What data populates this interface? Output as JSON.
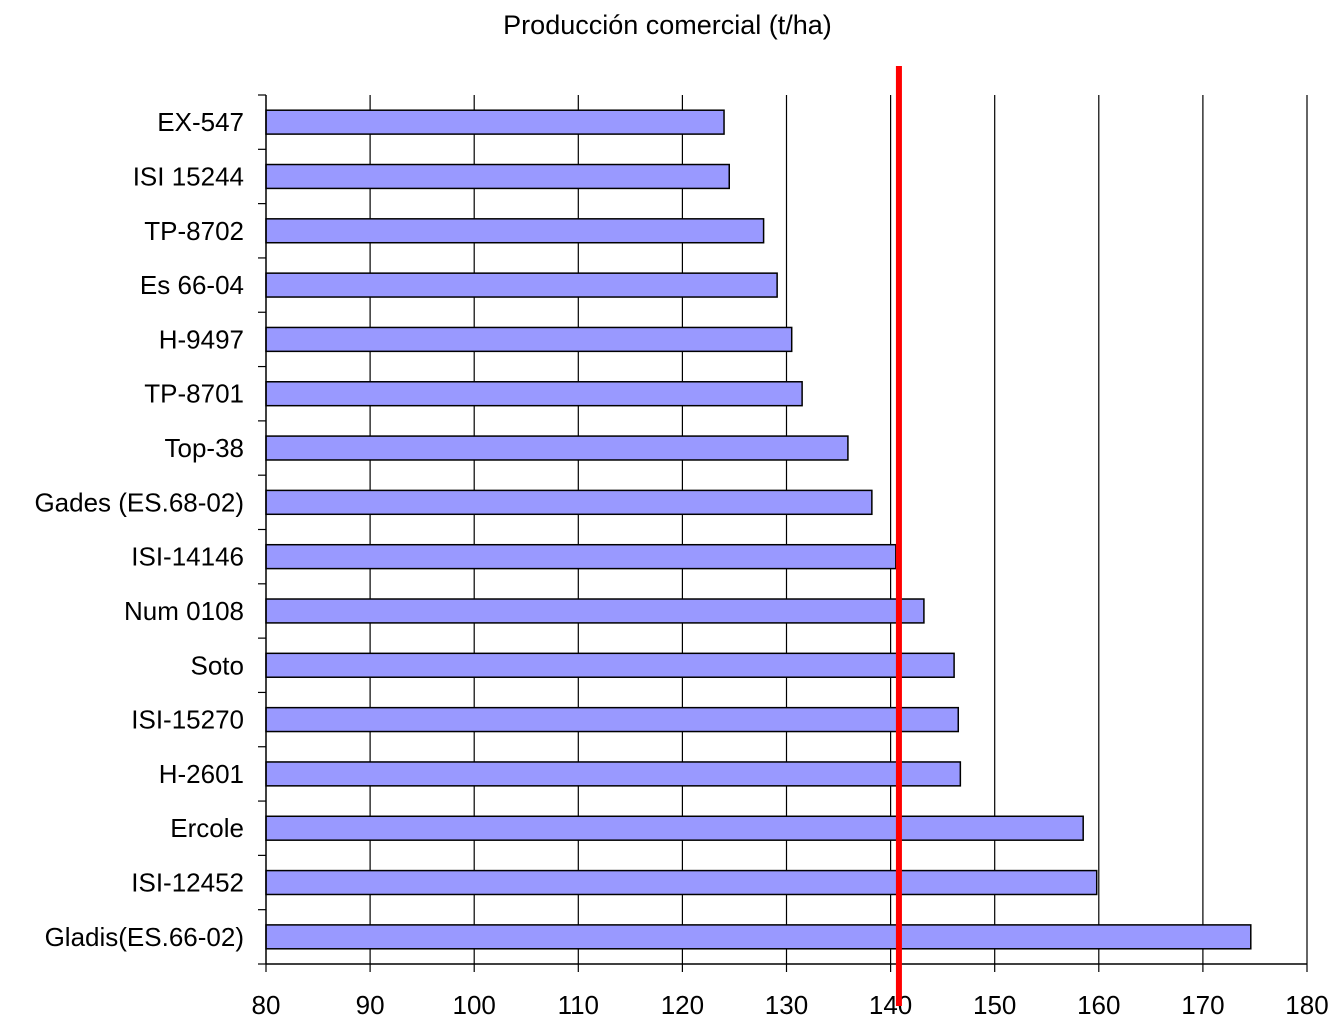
{
  "chart_data": {
    "type": "bar",
    "orientation": "horizontal",
    "title": "Producción comercial (t/ha)",
    "xlabel": "",
    "ylabel": "",
    "xlim": [
      80,
      180
    ],
    "xticks": [
      80,
      90,
      100,
      110,
      120,
      130,
      140,
      150,
      160,
      170,
      180
    ],
    "grid": "vertical",
    "categories": [
      "EX-547",
      "ISI 15244",
      "TP-8702",
      "Es 66-04",
      "H-9497",
      "TP-8701",
      "Top-38",
      "Gades (ES.68-02)",
      "ISI-14146",
      "Num 0108",
      "Soto",
      "ISI-15270",
      "H-2601",
      "Ercole",
      "ISI-12452",
      "Gladis(ES.66-02)"
    ],
    "values": [
      124.0,
      124.5,
      127.8,
      129.1,
      130.5,
      131.5,
      135.9,
      138.2,
      140.5,
      143.2,
      146.1,
      146.5,
      146.7,
      158.5,
      159.8,
      174.6
    ],
    "reference_line": {
      "value": 140.8,
      "color": "#ff0000"
    },
    "bar_color": "#9999ff",
    "bar_stroke": "#000000"
  }
}
